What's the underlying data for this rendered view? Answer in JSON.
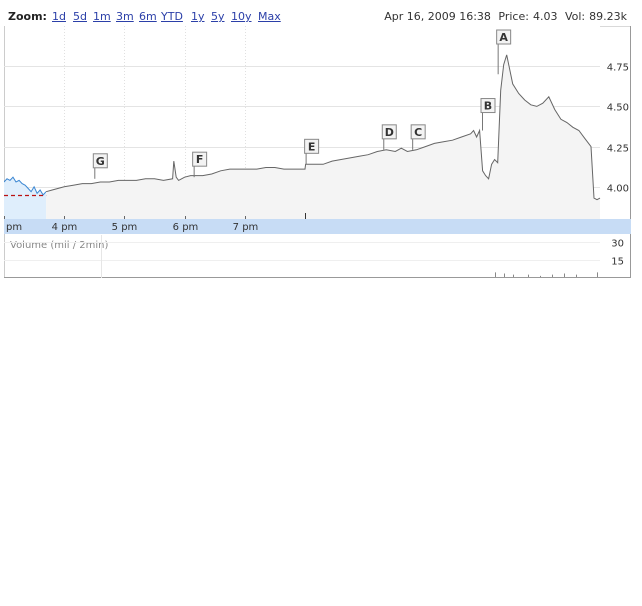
{
  "zoom": {
    "label": "Zoom:",
    "options": [
      "1d",
      "5d",
      "1m",
      "3m",
      "6m",
      "YTD",
      "1y",
      "5y",
      "10y",
      "Max"
    ]
  },
  "status": {
    "date": "Apr 16, 2009 16:38",
    "price_label": "Price:",
    "price": "4.03",
    "volume_label": "Vol:",
    "volume": "89.23k"
  },
  "colors": {
    "price_line": "#666666",
    "price_fill": "#f4f4f4",
    "regular_line": "#3a86d2",
    "regular_fill": "#dfeefc",
    "prev_close": "#bb1111",
    "grid": "#e4e4e4",
    "axis_strip": "#c7dcf5"
  },
  "chart_data": {
    "type": "line",
    "title": "",
    "xlabel": "",
    "ylabel": "",
    "y_ticks": [
      4.0,
      4.25,
      4.5,
      4.75
    ],
    "y_tick_labels": [
      "4.00",
      "4.25",
      "4.50",
      "4.75"
    ],
    "ylim": [
      3.8,
      5.0
    ],
    "x_tick_labels": [
      "pm",
      "4 pm",
      "5 pm",
      "6 pm",
      "7 pm"
    ],
    "x_ticks": [
      15.0,
      16.0,
      17.0,
      18.0,
      19.0
    ],
    "xlim": [
      15.0,
      24.9
    ],
    "grid": true,
    "previous_close": 3.95,
    "series": [
      {
        "segment": "regular",
        "x": [
          15.0,
          15.05,
          15.1,
          15.15,
          15.2,
          15.25,
          15.3,
          15.35,
          15.4,
          15.45,
          15.5,
          15.55,
          15.6,
          15.65,
          15.7
        ],
        "values": [
          4.03,
          4.05,
          4.04,
          4.06,
          4.03,
          4.04,
          4.02,
          4.01,
          3.99,
          3.97,
          4.0,
          3.96,
          3.98,
          3.95,
          3.97
        ]
      },
      {
        "segment": "after-hours",
        "x": [
          15.7,
          15.8,
          15.9,
          16.0,
          16.15,
          16.3,
          16.45,
          16.6,
          16.75,
          16.9,
          17.05,
          17.2,
          17.35,
          17.5,
          17.65,
          17.8,
          17.82,
          17.86,
          17.9,
          17.95,
          18.0,
          18.1,
          18.2,
          18.3,
          18.45,
          18.6,
          18.75,
          18.9,
          19.05,
          19.2,
          19.35,
          19.5,
          19.65,
          19.8,
          19.95,
          20.0,
          20.01,
          20.15,
          20.3,
          20.45,
          20.6,
          20.75,
          20.9,
          21.05,
          21.2,
          21.35,
          21.5,
          21.6,
          21.7,
          21.85,
          22.0,
          22.15,
          22.3,
          22.45,
          22.6,
          22.75,
          22.8,
          22.85,
          22.9,
          22.95,
          23.0,
          23.05,
          23.1,
          23.15,
          23.2,
          23.25,
          23.3,
          23.35,
          23.45,
          23.55,
          23.65,
          23.75,
          23.85,
          23.95,
          24.05,
          24.15,
          24.25,
          24.35,
          24.45,
          24.55,
          24.65,
          24.75,
          24.8,
          24.85,
          24.9
        ],
        "values": [
          3.97,
          3.98,
          3.99,
          4.0,
          4.01,
          4.02,
          4.02,
          4.03,
          4.03,
          4.04,
          4.04,
          4.04,
          4.05,
          4.05,
          4.04,
          4.05,
          4.16,
          4.06,
          4.04,
          4.05,
          4.06,
          4.07,
          4.07,
          4.07,
          4.08,
          4.1,
          4.11,
          4.11,
          4.11,
          4.11,
          4.12,
          4.12,
          4.11,
          4.11,
          4.11,
          4.11,
          4.14,
          4.14,
          4.14,
          4.16,
          4.17,
          4.18,
          4.19,
          4.2,
          4.22,
          4.23,
          4.22,
          4.24,
          4.22,
          4.23,
          4.25,
          4.27,
          4.28,
          4.29,
          4.31,
          4.33,
          4.35,
          4.31,
          4.35,
          4.1,
          4.07,
          4.05,
          4.14,
          4.17,
          4.15,
          4.6,
          4.76,
          4.82,
          4.64,
          4.58,
          4.54,
          4.51,
          4.5,
          4.52,
          4.56,
          4.48,
          4.42,
          4.4,
          4.37,
          4.35,
          4.3,
          4.25,
          3.93,
          3.92,
          3.93
        ]
      }
    ],
    "annotations": [
      {
        "label": "G",
        "x": 16.5,
        "y": 4.05
      },
      {
        "label": "F",
        "x": 18.15,
        "y": 4.06
      },
      {
        "label": "E",
        "x": 20.01,
        "y": 4.14
      },
      {
        "label": "D",
        "x": 21.3,
        "y": 4.23
      },
      {
        "label": "C",
        "x": 21.78,
        "y": 4.23
      },
      {
        "label": "B",
        "x": 22.94,
        "y": 4.35
      },
      {
        "label": "A",
        "x": 23.2,
        "y": 4.7
      }
    ],
    "volume": {
      "title": "Volume (mil / 2min)",
      "y_ticks": [
        15,
        30
      ],
      "y_tick_labels": [
        "15",
        "30"
      ],
      "ylim": [
        0,
        36
      ],
      "x": [
        23.15,
        23.3,
        23.45,
        23.7,
        23.9,
        24.1,
        24.3,
        24.5,
        24.85
      ],
      "values": [
        4,
        3,
        2,
        2,
        1,
        2,
        3,
        2,
        4
      ]
    }
  }
}
